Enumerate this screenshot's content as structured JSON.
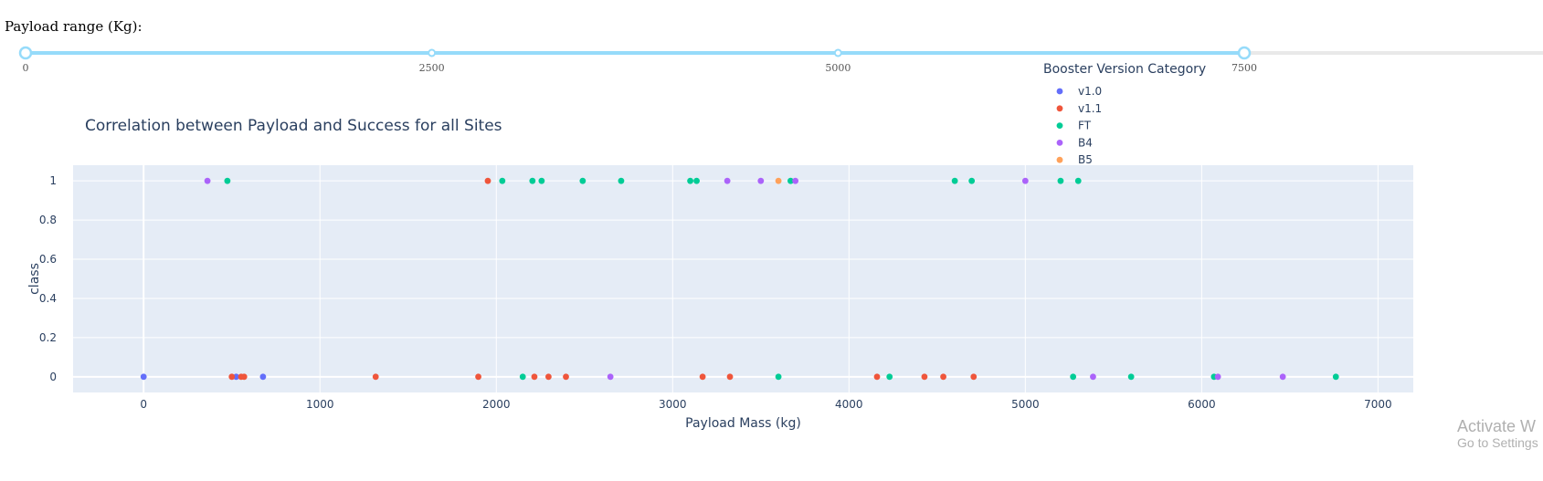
{
  "slider": {
    "label": "Payload range (Kg):",
    "min": 0,
    "max": 10000,
    "value": [
      0,
      7500
    ],
    "marks": [
      "0",
      "2500",
      "5000",
      "7500"
    ],
    "mark_values": [
      0,
      2500,
      5000,
      7500
    ],
    "track_color": "#e9e9e9",
    "active_color": "#96dbfa"
  },
  "legend": {
    "title": "Booster Version Category",
    "items": [
      {
        "name": "v1.0",
        "color": "#636efa"
      },
      {
        "name": "v1.1",
        "color": "#ef553b"
      },
      {
        "name": "FT",
        "color": "#00cc96"
      },
      {
        "name": "B4",
        "color": "#ab63fa"
      },
      {
        "name": "B5",
        "color": "#ffa15a"
      }
    ]
  },
  "watermark": {
    "line1": "Activate W",
    "line2": "Go to Settings"
  },
  "chart_data": {
    "type": "scatter",
    "title": "Correlation between Payload and Success for all Sites",
    "xlabel": "Payload Mass (kg)",
    "ylabel": "class",
    "xlim": [
      -400,
      7200
    ],
    "ylim": [
      -0.08,
      1.08
    ],
    "xticks": [
      0,
      1000,
      2000,
      3000,
      4000,
      5000,
      6000,
      7000
    ],
    "xtick_labels": [
      "0",
      "1000",
      "2000",
      "3000",
      "4000",
      "5000",
      "6000",
      "7000"
    ],
    "yticks": [
      0,
      0.2,
      0.4,
      0.6,
      0.8,
      1
    ],
    "ytick_labels": [
      "0",
      "0.2",
      "0.4",
      "0.6",
      "0.8",
      "1"
    ],
    "grid": true,
    "plot_background": "#e5ecf6",
    "legend_position": "top-right",
    "series": [
      {
        "name": "v1.0",
        "color": "#636efa",
        "points": [
          [
            0,
            0
          ],
          [
            525,
            0
          ],
          [
            677,
            0
          ]
        ]
      },
      {
        "name": "v1.1",
        "color": "#ef553b",
        "points": [
          [
            500,
            0
          ],
          [
            553,
            0
          ],
          [
            570,
            0
          ],
          [
            1316,
            0
          ],
          [
            1898,
            0
          ],
          [
            1952,
            1
          ],
          [
            2216,
            0
          ],
          [
            2296,
            0
          ],
          [
            2395,
            0
          ],
          [
            3170,
            0
          ],
          [
            3325,
            0
          ],
          [
            4159,
            0
          ],
          [
            4428,
            0
          ],
          [
            4535,
            0
          ],
          [
            4707,
            0
          ]
        ]
      },
      {
        "name": "FT",
        "color": "#00cc96",
        "points": [
          [
            475,
            1
          ],
          [
            2034,
            1
          ],
          [
            2150,
            0
          ],
          [
            2205,
            1
          ],
          [
            2257,
            1
          ],
          [
            2490,
            1
          ],
          [
            2708,
            1
          ],
          [
            3100,
            1
          ],
          [
            3136,
            1
          ],
          [
            3600,
            0
          ],
          [
            3669,
            1
          ],
          [
            4230,
            0
          ],
          [
            4600,
            1
          ],
          [
            4696,
            1
          ],
          [
            5200,
            1
          ],
          [
            5271,
            0
          ],
          [
            5300,
            1
          ],
          [
            5600,
            0
          ],
          [
            6070,
            0
          ],
          [
            6761,
            0
          ]
        ]
      },
      {
        "name": "B4",
        "color": "#ab63fa",
        "points": [
          [
            362,
            1
          ],
          [
            2647,
            0
          ],
          [
            3310,
            1
          ],
          [
            3500,
            1
          ],
          [
            3696,
            1
          ],
          [
            5000,
            1
          ],
          [
            5384,
            0
          ],
          [
            6092,
            0
          ],
          [
            6460,
            0
          ]
        ]
      },
      {
        "name": "B5",
        "color": "#ffa15a",
        "points": [
          [
            3600,
            1
          ]
        ]
      }
    ]
  }
}
